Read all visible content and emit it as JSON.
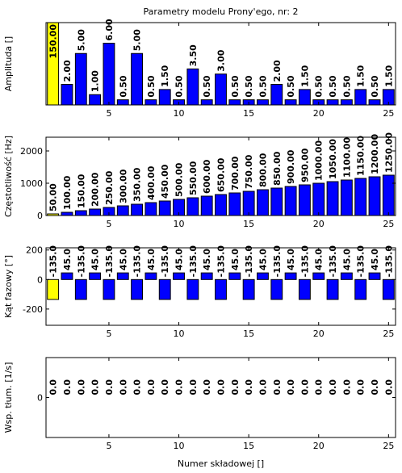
{
  "chart_data": [
    {
      "type": "bar",
      "title": "Parametry modelu Prony'ego, nr: 2",
      "ylabel": "Amplituda []",
      "categories": [
        1,
        2,
        3,
        4,
        5,
        6,
        7,
        8,
        9,
        10,
        11,
        12,
        13,
        14,
        15,
        16,
        17,
        18,
        19,
        20,
        21,
        22,
        23,
        24,
        25
      ],
      "values": [
        150,
        2,
        5,
        1,
        6,
        0.5,
        5,
        0.5,
        1.5,
        0.5,
        3.5,
        0.5,
        3,
        0.5,
        0.5,
        0.5,
        2,
        0.5,
        1.5,
        0.5,
        0.5,
        0.5,
        1.5,
        0.5,
        1.5
      ],
      "value_labels": [
        "150.00",
        "2.00",
        "5.00",
        "1.00",
        "6.00",
        "0.50",
        "5.00",
        "0.50",
        "1.50",
        "0.50",
        "3.50",
        "0.50",
        "3.00",
        "0.50",
        "0.50",
        "0.50",
        "2.00",
        "0.50",
        "1.50",
        "0.50",
        "0.50",
        "0.50",
        "1.50",
        "0.50",
        "1.50"
      ],
      "colors": [
        "#ffff00",
        "#0000ff",
        "#0000ff",
        "#0000ff",
        "#0000ff",
        "#0000ff",
        "#0000ff",
        "#0000ff",
        "#0000ff",
        "#0000ff",
        "#0000ff",
        "#0000ff",
        "#0000ff",
        "#0000ff",
        "#0000ff",
        "#0000ff",
        "#0000ff",
        "#0000ff",
        "#0000ff",
        "#0000ff",
        "#0000ff",
        "#0000ff",
        "#0000ff",
        "#0000ff",
        "#0000ff"
      ],
      "xlim": [
        0.5,
        25.5
      ],
      "xticks": [
        5,
        10,
        15,
        20,
        25
      ],
      "ylim": [
        0,
        8
      ]
    },
    {
      "type": "bar",
      "ylabel": "Częstotliwość [Hz]",
      "categories": [
        1,
        2,
        3,
        4,
        5,
        6,
        7,
        8,
        9,
        10,
        11,
        12,
        13,
        14,
        15,
        16,
        17,
        18,
        19,
        20,
        21,
        22,
        23,
        24,
        25
      ],
      "values": [
        50,
        100,
        150,
        200,
        250,
        300,
        350,
        400,
        450,
        500,
        550,
        600,
        650,
        700,
        750,
        800,
        850,
        900,
        950,
        1000,
        1050,
        1100,
        1150,
        1200,
        1250
      ],
      "value_labels": [
        "50.00",
        "100.00",
        "150.00",
        "200.00",
        "250.00",
        "300.00",
        "350.00",
        "400.00",
        "450.00",
        "500.00",
        "550.00",
        "600.00",
        "650.00",
        "700.00",
        "750.00",
        "800.00",
        "850.00",
        "900.00",
        "950.00",
        "1000.00",
        "1050.00",
        "1100.00",
        "1150.00",
        "1200.00",
        "1250.00"
      ],
      "colors": [
        "#ffff00",
        "#0000ff",
        "#0000ff",
        "#0000ff",
        "#0000ff",
        "#0000ff",
        "#0000ff",
        "#0000ff",
        "#0000ff",
        "#0000ff",
        "#0000ff",
        "#0000ff",
        "#0000ff",
        "#0000ff",
        "#0000ff",
        "#0000ff",
        "#0000ff",
        "#0000ff",
        "#0000ff",
        "#0000ff",
        "#0000ff",
        "#0000ff",
        "#0000ff",
        "#0000ff",
        "#0000ff"
      ],
      "xlim": [
        0.5,
        25.5
      ],
      "xticks": [
        5,
        10,
        15,
        20,
        25
      ],
      "ylim": [
        0,
        2425
      ],
      "yticks": [
        0,
        1000,
        2000
      ]
    },
    {
      "type": "bar",
      "ylabel": "Kąt fazowy [°]",
      "categories": [
        1,
        2,
        3,
        4,
        5,
        6,
        7,
        8,
        9,
        10,
        11,
        12,
        13,
        14,
        15,
        16,
        17,
        18,
        19,
        20,
        21,
        22,
        23,
        24,
        25
      ],
      "values": [
        -135,
        45,
        -135,
        45,
        -135,
        45,
        -135,
        45,
        -135,
        45,
        -135,
        45,
        -135,
        45,
        -135,
        45,
        -135,
        45,
        -135,
        45,
        -135,
        45,
        -135,
        45,
        -135
      ],
      "value_labels": [
        "-135.0",
        "45.0",
        "-135.0",
        "45.0",
        "-135.0",
        "45.0",
        "-135.0",
        "45.0",
        "-135.0",
        "45.0",
        "-135.0",
        "45.0",
        "-135.0",
        "45.0",
        "-135.0",
        "45.0",
        "-135.0",
        "45.0",
        "-135.0",
        "45.0",
        "-135.0",
        "45.0",
        "-135.0",
        "45.0",
        "-135.0"
      ],
      "colors": [
        "#ffff00",
        "#0000ff",
        "#0000ff",
        "#0000ff",
        "#0000ff",
        "#0000ff",
        "#0000ff",
        "#0000ff",
        "#0000ff",
        "#0000ff",
        "#0000ff",
        "#0000ff",
        "#0000ff",
        "#0000ff",
        "#0000ff",
        "#0000ff",
        "#0000ff",
        "#0000ff",
        "#0000ff",
        "#0000ff",
        "#0000ff",
        "#0000ff",
        "#0000ff",
        "#0000ff",
        "#0000ff"
      ],
      "xlim": [
        0.5,
        25.5
      ],
      "xticks": [
        5,
        10,
        15,
        20,
        25
      ],
      "ylim": [
        -310,
        215
      ],
      "yticks": [
        -200,
        0,
        200
      ]
    },
    {
      "type": "bar",
      "ylabel": "Wsp. tłum. [1/s]",
      "xlabel": "Numer składowej []",
      "categories": [
        1,
        2,
        3,
        4,
        5,
        6,
        7,
        8,
        9,
        10,
        11,
        12,
        13,
        14,
        15,
        16,
        17,
        18,
        19,
        20,
        21,
        22,
        23,
        24,
        25
      ],
      "values": [
        0,
        0,
        0,
        0,
        0,
        0,
        0,
        0,
        0,
        0,
        0,
        0,
        0,
        0,
        0,
        0,
        0,
        0,
        0,
        0,
        0,
        0,
        0,
        0,
        0
      ],
      "value_labels": [
        "0.0",
        "0.0",
        "0.0",
        "0.0",
        "0.0",
        "0.0",
        "0.0",
        "0.0",
        "0.0",
        "0.0",
        "0.0",
        "0.0",
        "0.0",
        "0.0",
        "0.0",
        "0.0",
        "0.0",
        "0.0",
        "0.0",
        "0.0",
        "0.0",
        "0.0",
        "0.0",
        "0.0",
        "0.0"
      ],
      "colors": [
        "#ffff00",
        "#0000ff",
        "#0000ff",
        "#0000ff",
        "#0000ff",
        "#0000ff",
        "#0000ff",
        "#0000ff",
        "#0000ff",
        "#0000ff",
        "#0000ff",
        "#0000ff",
        "#0000ff",
        "#0000ff",
        "#0000ff",
        "#0000ff",
        "#0000ff",
        "#0000ff",
        "#0000ff",
        "#0000ff",
        "#0000ff",
        "#0000ff",
        "#0000ff",
        "#0000ff",
        "#0000ff"
      ],
      "xlim": [
        0.5,
        25.5
      ],
      "xticks": [
        5,
        10,
        15,
        20,
        25
      ],
      "ylim": [
        -1,
        1
      ],
      "yticks": [
        0
      ]
    }
  ]
}
